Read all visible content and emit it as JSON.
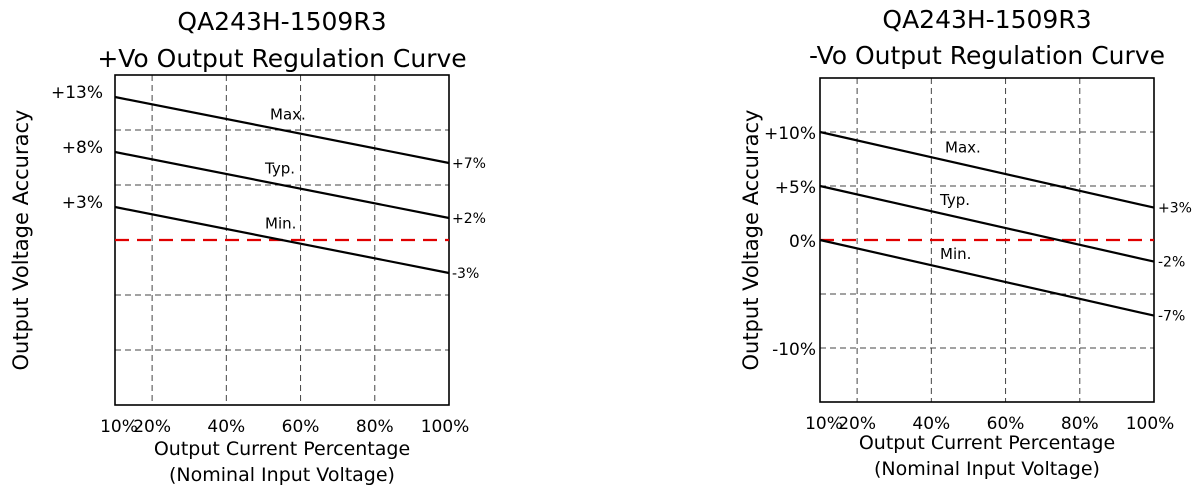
{
  "chart_data": [
    {
      "type": "line",
      "title": [
        "QA243H-1509R3",
        "+Vo Output Regulation Curve"
      ],
      "xlabel": [
        "Output Current Percentage",
        "(Nominal Input Voltage)"
      ],
      "ylabel": "Output Voltage Accuracy",
      "x": [
        10,
        100
      ],
      "xticks": [
        10,
        20,
        40,
        60,
        80,
        100
      ],
      "xtick_labels": [
        "10%",
        "20%",
        "40%",
        "60%",
        "80%",
        "100%"
      ],
      "xlim": [
        10,
        100
      ],
      "ylim": [
        -15,
        15
      ],
      "ygrid": [
        -10,
        -5,
        0,
        5,
        10
      ],
      "start_labels": [
        "+13%",
        "+8%",
        "+3%"
      ],
      "series": [
        {
          "name": "Max.",
          "values": [
            13,
            7
          ],
          "end_label": "+7%"
        },
        {
          "name": "Typ.",
          "values": [
            8,
            2
          ],
          "end_label": "+2%"
        },
        {
          "name": "Min.",
          "values": [
            3,
            -3
          ],
          "end_label": "-3%"
        }
      ],
      "reference_line": {
        "y": 0,
        "color": "#e00000",
        "style": "dashed"
      },
      "grid": true
    },
    {
      "type": "line",
      "title": [
        "QA243H-1509R3",
        "-Vo Output Regulation Curve"
      ],
      "xlabel": [
        "Output Current Percentage",
        "(Nominal Input Voltage)"
      ],
      "ylabel": "Output Voltage Accuracy",
      "x": [
        10,
        100
      ],
      "xticks": [
        10,
        20,
        40,
        60,
        80,
        100
      ],
      "xtick_labels": [
        "10%",
        "20%",
        "40%",
        "60%",
        "80%",
        "100%"
      ],
      "xlim": [
        10,
        100
      ],
      "ylim": [
        -15,
        15
      ],
      "ygrid": [
        -10,
        -5,
        0,
        5,
        10
      ],
      "yticks": [
        10,
        5,
        0,
        -10
      ],
      "ytick_labels": [
        "+10%",
        "+5%",
        "0%",
        "-10%"
      ],
      "series": [
        {
          "name": "Max.",
          "values": [
            10,
            3
          ],
          "end_label": "+3%"
        },
        {
          "name": "Typ.",
          "values": [
            5,
            -2
          ],
          "end_label": "-2%"
        },
        {
          "name": "Min.",
          "values": [
            0,
            -7
          ],
          "end_label": "-7%"
        }
      ],
      "reference_line": {
        "y": 0,
        "color": "#e00000",
        "style": "dashed"
      },
      "grid": true
    }
  ]
}
